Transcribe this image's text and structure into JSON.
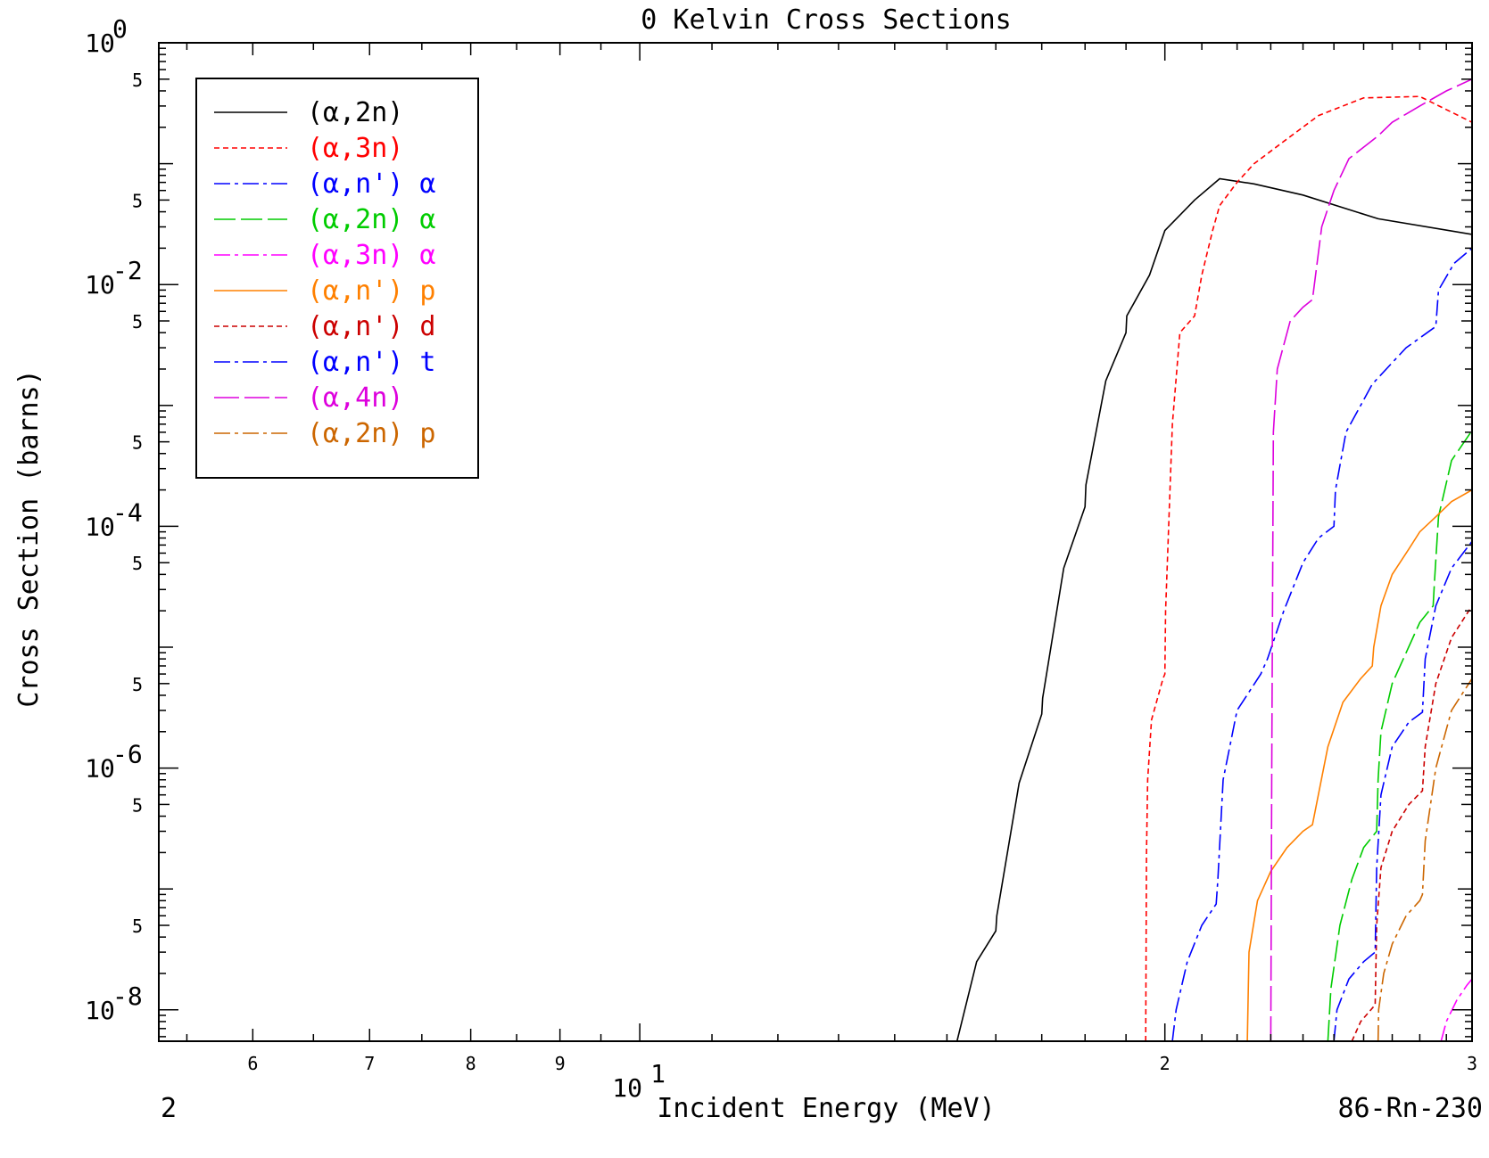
{
  "chart_data": {
    "type": "line",
    "title": "0 Kelvin Cross Sections",
    "xlabel": "Incident Energy (MeV)",
    "ylabel": "Cross Section (barns)",
    "x_scale": "log",
    "y_scale": "log",
    "xlim": [
      5.3,
      30.0
    ],
    "ylim": [
      5.5e-09,
      1.0
    ],
    "x_minor_ticks": [
      {
        "value": 6,
        "label": "6"
      },
      {
        "value": 7,
        "label": "7"
      },
      {
        "value": 8,
        "label": "8"
      },
      {
        "value": 9,
        "label": "9"
      },
      {
        "value": 20,
        "label": "2"
      },
      {
        "value": 30,
        "label": "3"
      }
    ],
    "x_major_tick": {
      "value": 10,
      "base": "10",
      "exp": "1"
    },
    "y_major_ticks": [
      {
        "value": 1,
        "base": "10",
        "exp": "0"
      },
      {
        "value": 0.01,
        "base": "10",
        "exp": "-2"
      },
      {
        "value": 0.0001,
        "base": "10",
        "exp": "-4"
      },
      {
        "value": 1e-06,
        "base": "10",
        "exp": "-6"
      },
      {
        "value": 1e-08,
        "base": "10",
        "exp": "-8"
      }
    ],
    "y_minor_ticks": [
      {
        "value": 0.5,
        "label": "5"
      },
      {
        "value": 0.05,
        "label": "5"
      },
      {
        "value": 0.005,
        "label": "5"
      },
      {
        "value": 0.0005,
        "label": "5"
      },
      {
        "value": 5e-05,
        "label": "5"
      },
      {
        "value": 5e-06,
        "label": "5"
      },
      {
        "value": 5e-07,
        "label": "5"
      },
      {
        "value": 5e-08,
        "label": "5"
      }
    ],
    "legend_position": "top-left",
    "footer_left": "2",
    "footer_right": "86-Rn-230",
    "series": [
      {
        "name": "(α,2n)",
        "color": "#000000",
        "dash": "",
        "x": [
          15.2,
          15.6,
          16.0,
          16.02,
          16.5,
          17.0,
          17.02,
          17.5,
          18.0,
          18.02,
          18.5,
          19.0,
          19.02,
          19.6,
          20.0,
          20.8,
          21.5,
          22.5,
          24.0,
          26.5,
          30.0
        ],
        "y": [
          5.5e-09,
          2.5e-08,
          4.5e-08,
          6e-08,
          7.5e-07,
          2.8e-06,
          3.8e-06,
          4.5e-05,
          0.000145,
          0.00022,
          0.0016,
          0.004,
          0.0055,
          0.012,
          0.028,
          0.05,
          0.075,
          0.068,
          0.055,
          0.035,
          0.026
        ]
      },
      {
        "name": "(α,3n)",
        "color": "#ff0000",
        "dash": "6,4",
        "x": [
          19.5,
          19.52,
          19.55,
          19.65,
          19.95,
          20.0,
          20.02,
          20.2,
          20.4,
          20.8,
          21.0,
          21.3,
          21.5,
          22.0,
          22.5,
          23.5,
          24.5,
          26.0,
          28.0,
          30.0
        ],
        "y": [
          5.5e-09,
          2e-07,
          8e-07,
          2.5e-06,
          5.5e-06,
          6e-06,
          2e-05,
          0.0007,
          0.004,
          0.0055,
          0.012,
          0.028,
          0.045,
          0.07,
          0.1,
          0.16,
          0.25,
          0.35,
          0.36,
          0.22
        ]
      },
      {
        "name": "(α,n') α",
        "color": "#0000ff",
        "dash": "18,5,4,5",
        "x": [
          20.2,
          20.3,
          20.6,
          21.0,
          21.4,
          21.45,
          21.6,
          22.0,
          22.7,
          22.9,
          23.4,
          24.0,
          24.5,
          25.0,
          25.05,
          25.4,
          26.3,
          27.5,
          28.6,
          28.7,
          29.3,
          30.0
        ],
        "y": [
          5.5e-09,
          1e-08,
          2.5e-08,
          5e-08,
          7.5e-08,
          1.2e-07,
          8e-07,
          3e-06,
          6e-06,
          8e-06,
          2e-05,
          5e-05,
          8e-05,
          0.0001,
          0.0002,
          0.0006,
          0.0015,
          0.003,
          0.0045,
          0.009,
          0.015,
          0.02
        ]
      },
      {
        "name": "(α,2n) α",
        "color": "#00cc00",
        "dash": "24,6",
        "x": [
          24.8,
          24.9,
          25.2,
          25.6,
          26.0,
          26.45,
          26.5,
          26.6,
          27.0,
          27.5,
          28.0,
          28.5,
          28.55,
          28.7,
          29.2,
          30.0
        ],
        "y": [
          5.5e-09,
          1.5e-08,
          5e-08,
          1.2e-07,
          2.2e-07,
          3e-07,
          8e-07,
          2e-06,
          5e-06,
          9e-06,
          1.6e-05,
          2.2e-05,
          3.5e-05,
          0.00012,
          0.00035,
          0.00062
        ]
      },
      {
        "name": "(α,3n) α",
        "color": "#ff00ff",
        "dash": "18,5,4,5",
        "x": [
          28.8,
          29.0,
          29.4,
          29.8,
          30.0
        ],
        "y": [
          5.5e-09,
          8e-09,
          1.2e-08,
          1.6e-08,
          1.8e-08
        ]
      },
      {
        "name": "(α,n') p",
        "color": "#ff8000",
        "dash": "",
        "x": [
          22.3,
          22.35,
          22.6,
          23.0,
          23.5,
          24.0,
          24.3,
          24.8,
          25.3,
          25.9,
          26.3,
          26.35,
          26.6,
          27.0,
          27.6,
          28.0,
          28.6,
          29.2,
          30.0
        ],
        "y": [
          5.5e-09,
          3e-08,
          8e-08,
          1.4e-07,
          2.2e-07,
          3e-07,
          3.4e-07,
          1.5e-06,
          3.5e-06,
          5.5e-06,
          7e-06,
          1e-05,
          2.2e-05,
          4e-05,
          6.5e-05,
          9e-05,
          0.00012,
          0.00016,
          0.0002
        ]
      },
      {
        "name": "(α,n') d",
        "color": "#cc0000",
        "dash": "6,4",
        "x": [
          25.6,
          25.9,
          26.4,
          26.45,
          26.6,
          27.0,
          27.6,
          28.1,
          28.2,
          28.6,
          29.2,
          30.0
        ],
        "y": [
          5.5e-09,
          8e-09,
          1.1e-08,
          5e-08,
          1.5e-07,
          3e-07,
          5e-07,
          6.5e-07,
          1.5e-06,
          5e-06,
          1.2e-05,
          2.2e-05
        ]
      },
      {
        "name": "(α,n') t",
        "color": "#0000ff",
        "dash": "18,5,4,5",
        "x": [
          25.0,
          25.1,
          25.5,
          26.0,
          26.4,
          26.45,
          26.6,
          27.0,
          27.6,
          28.1,
          28.2,
          28.6,
          29.2,
          30.0
        ],
        "y": [
          5.5e-09,
          1e-08,
          1.8e-08,
          2.5e-08,
          3e-08,
          1.5e-07,
          6e-07,
          1.5e-06,
          2.4e-06,
          2.9e-06,
          8e-06,
          2.2e-05,
          4.5e-05,
          7.5e-05
        ]
      },
      {
        "name": "(α,4n)",
        "color": "#dd00dd",
        "dash": "28,6",
        "x": [
          23.0,
          23.03,
          23.08,
          23.2,
          23.6,
          24.0,
          24.3,
          24.6,
          25.0,
          25.5,
          26.5,
          27.0,
          28.0,
          29.0,
          30.0
        ],
        "y": [
          5.5e-09,
          1e-06,
          0.0006,
          0.002,
          0.005,
          0.0065,
          0.0075,
          0.03,
          0.06,
          0.11,
          0.17,
          0.22,
          0.3,
          0.4,
          0.5
        ]
      },
      {
        "name": "(α,2n) p",
        "color": "#cc6600",
        "dash": "18,5,4,5",
        "x": [
          26.5,
          26.52,
          26.7,
          27.0,
          27.5,
          28.0,
          28.1,
          28.2,
          28.6,
          29.2,
          30.0
        ],
        "y": [
          5.5e-09,
          1e-08,
          2e-08,
          3.5e-08,
          6e-08,
          8e-08,
          9e-08,
          2.5e-07,
          1e-06,
          3e-06,
          5.5e-06
        ]
      }
    ]
  }
}
